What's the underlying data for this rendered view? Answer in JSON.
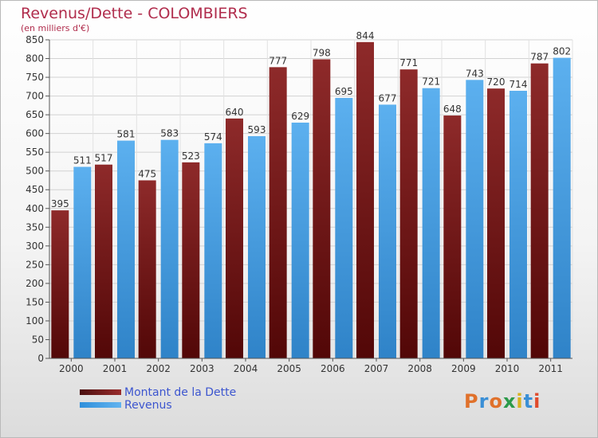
{
  "header": {
    "title": "Revenus/Dette - COLOMBIERS",
    "subtitle": "(en milliers d'€)"
  },
  "logo": {
    "text": "Proxiti"
  },
  "colors": {
    "dette": "#7a1e1e",
    "revenus": "#4aa3e6",
    "title": "#b02c4c",
    "legend_text": "#3c55cf"
  },
  "chart_data": {
    "type": "bar",
    "title": "Revenus/Dette - COLOMBIERS",
    "subtitle": "(en milliers d'€)",
    "categories": [
      "2000",
      "2001",
      "2002",
      "2003",
      "2004",
      "2005",
      "2006",
      "2007",
      "2008",
      "2009",
      "2010",
      "2011"
    ],
    "series": [
      {
        "name": "Montant de la Dette",
        "values": [
          395,
          517,
          475,
          523,
          640,
          777,
          798,
          844,
          771,
          648,
          720,
          787
        ]
      },
      {
        "name": "Revenus",
        "values": [
          511,
          581,
          583,
          574,
          593,
          629,
          695,
          677,
          721,
          743,
          714,
          802
        ]
      }
    ],
    "ylim": [
      0,
      850
    ],
    "ytick_step": 50,
    "grid": true,
    "legend": "bottom-left"
  }
}
